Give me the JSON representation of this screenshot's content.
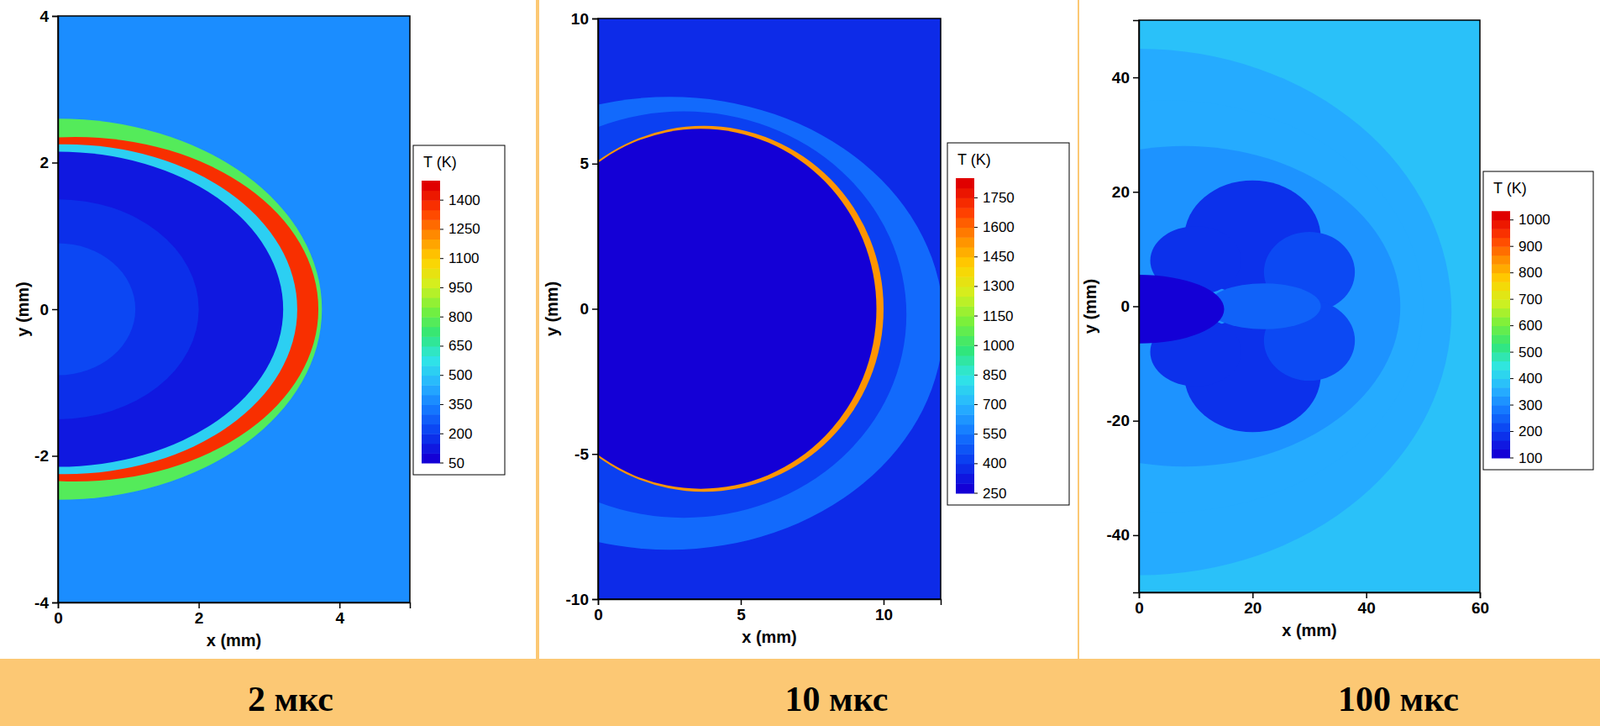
{
  "chart_data": [
    {
      "type": "heatmap",
      "title": "2 мкс",
      "x_label": "x (mm)",
      "y_label": "y (mm)",
      "xlim": [
        0,
        5
      ],
      "ylim": [
        -4,
        4
      ],
      "xticks": [
        0,
        2,
        4
      ],
      "yticks": [
        -4,
        -2,
        0,
        2,
        4
      ],
      "colorbar": {
        "title": "T (K)",
        "range": [
          50,
          1500
        ],
        "ticks": [
          50,
          200,
          350,
          500,
          650,
          800,
          950,
          1100,
          1250,
          1400
        ]
      },
      "background": 380,
      "regions": [
        {
          "shape": "ellipse",
          "cx": 0,
          "cy": 0,
          "rx": 3.75,
          "ry": 2.6,
          "value": 780
        },
        {
          "shape": "ellipse",
          "cx": 0.25,
          "cy": 0,
          "rx": 3.45,
          "ry": 2.35,
          "value": 1350
        },
        {
          "shape": "ellipse",
          "cx": 0.1,
          "cy": 0,
          "rx": 3.3,
          "ry": 2.25,
          "value": 500
        },
        {
          "shape": "ellipse",
          "cx": 0,
          "cy": 0,
          "rx": 3.2,
          "ry": 2.15,
          "value": 110
        },
        {
          "shape": "ellipse",
          "cx": 0,
          "cy": 0,
          "rx": 2.0,
          "ry": 1.5,
          "value": 150
        },
        {
          "shape": "ellipse",
          "cx": 0,
          "cy": 0,
          "rx": 1.1,
          "ry": 0.9,
          "value": 200
        }
      ]
    },
    {
      "type": "heatmap",
      "title": "10 мкс",
      "x_label": "x (mm)",
      "y_label": "y (mm)",
      "xlim": [
        0,
        12
      ],
      "ylim": [
        -10,
        10
      ],
      "xticks": [
        0,
        5,
        10
      ],
      "yticks": [
        -10,
        -5,
        0,
        5,
        10
      ],
      "colorbar": {
        "title": "T (K)",
        "range": [
          250,
          1850
        ],
        "ticks": [
          250,
          400,
          550,
          700,
          850,
          1000,
          1150,
          1300,
          1450,
          1600,
          1750
        ]
      },
      "background": 380,
      "regions": [
        {
          "shape": "ellipse",
          "cx": 2.5,
          "cy": -0.5,
          "rx": 9.6,
          "ry": 7.8,
          "value": 520
        },
        {
          "shape": "ellipse",
          "cx": 3,
          "cy": -0.2,
          "rx": 7.8,
          "ry": 7.0,
          "value": 430
        },
        {
          "shape": "ellipse",
          "cx": 3.7,
          "cy": 0,
          "rx": 6.3,
          "ry": 6.3,
          "value": 1500
        },
        {
          "shape": "ellipse",
          "cx": 3.6,
          "cy": 0,
          "rx": 6.15,
          "ry": 6.2,
          "value": 260
        }
      ]
    },
    {
      "type": "heatmap",
      "title": "100 мкс",
      "x_label": "x (mm)",
      "y_label": "y (mm)",
      "xlim": [
        0,
        60
      ],
      "ylim": [
        -50,
        50
      ],
      "xticks": [
        0,
        20,
        40,
        60
      ],
      "yticks": [
        -40,
        -20,
        0,
        20,
        40
      ],
      "colorbar": {
        "title": "T (K)",
        "range": [
          100,
          1050
        ],
        "ticks": [
          100,
          200,
          300,
          400,
          500,
          600,
          700,
          800,
          900,
          1000
        ]
      },
      "background": 400,
      "regions": [
        {
          "shape": "ellipse",
          "cx": 0,
          "cy": -1,
          "rx": 55,
          "ry": 46,
          "value": 340
        },
        {
          "shape": "ellipse",
          "cx": 5,
          "cy": 0,
          "rx": 45,
          "ry": 36,
          "value": 370
        },
        {
          "shape": "ellipse",
          "cx": 8,
          "cy": 0,
          "rx": 38,
          "ry": 28,
          "value": 320
        },
        {
          "shape": "ellipse",
          "cx": 20,
          "cy": 12,
          "rx": 12,
          "ry": 10,
          "value": 200
        },
        {
          "shape": "ellipse",
          "cx": 20,
          "cy": -12,
          "rx": 12,
          "ry": 10,
          "value": 200
        },
        {
          "shape": "ellipse",
          "cx": 10,
          "cy": 8,
          "rx": 8,
          "ry": 6,
          "value": 190
        },
        {
          "shape": "ellipse",
          "cx": 10,
          "cy": -8,
          "rx": 8,
          "ry": 6,
          "value": 190
        },
        {
          "shape": "ellipse",
          "cx": 30,
          "cy": 6,
          "rx": 8,
          "ry": 7,
          "value": 220
        },
        {
          "shape": "ellipse",
          "cx": 30,
          "cy": -6,
          "rx": 8,
          "ry": 7,
          "value": 220
        },
        {
          "shape": "ellipse",
          "cx": 22,
          "cy": 0,
          "rx": 10,
          "ry": 4,
          "value": 250
        },
        {
          "shape": "ellipse",
          "cx": 0,
          "cy": -0.5,
          "rx": 15,
          "ry": 6,
          "value": 100
        }
      ]
    }
  ]
}
